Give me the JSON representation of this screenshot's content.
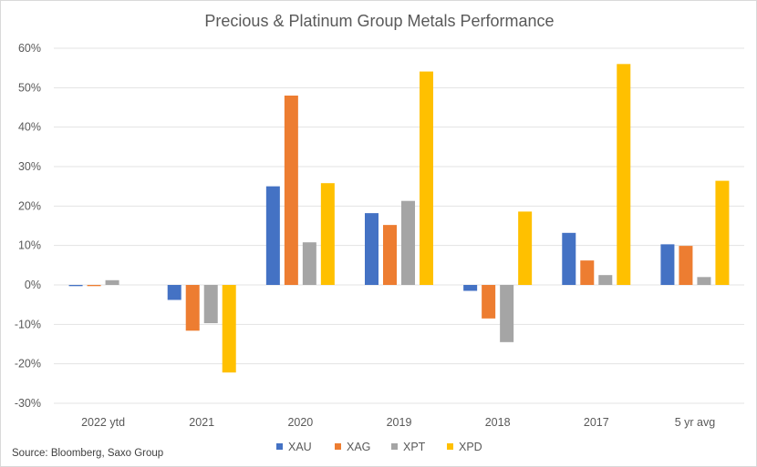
{
  "chart_data": {
    "type": "bar",
    "title": "Precious & Platinum Group Metals Performance",
    "xlabel": "",
    "ylabel": "",
    "categories": [
      "2022 ytd",
      "2021",
      "2020",
      "2019",
      "2018",
      "2017",
      "5 yr avg"
    ],
    "series": [
      {
        "name": "XAU",
        "color": "#4472C4",
        "values": [
          -0.3,
          -3.8,
          25.0,
          18.2,
          -1.5,
          13.2,
          10.3
        ]
      },
      {
        "name": "XAG",
        "color": "#ED7D31",
        "values": [
          -0.3,
          -11.6,
          48.0,
          15.2,
          -8.5,
          6.2,
          9.9
        ]
      },
      {
        "name": "XPT",
        "color": "#A5A5A5",
        "values": [
          1.2,
          -9.7,
          10.8,
          21.3,
          -14.5,
          2.5,
          2.0
        ]
      },
      {
        "name": "XPD",
        "color": "#FFC000",
        "values": [
          0.0,
          -22.2,
          25.8,
          54.1,
          18.6,
          56.0,
          26.4
        ]
      }
    ],
    "ylim": [
      -30,
      60
    ],
    "yticks": [
      60,
      50,
      40,
      30,
      20,
      10,
      0,
      -10,
      -20,
      -30
    ],
    "ytick_labels": [
      "60%",
      "50%",
      "40%",
      "30%",
      "20%",
      "10%",
      "0%",
      "-10%",
      "-20%",
      "-30%"
    ],
    "grid": true,
    "legend_position": "bottom",
    "source": "Source: Bloomberg, Saxo Group"
  }
}
